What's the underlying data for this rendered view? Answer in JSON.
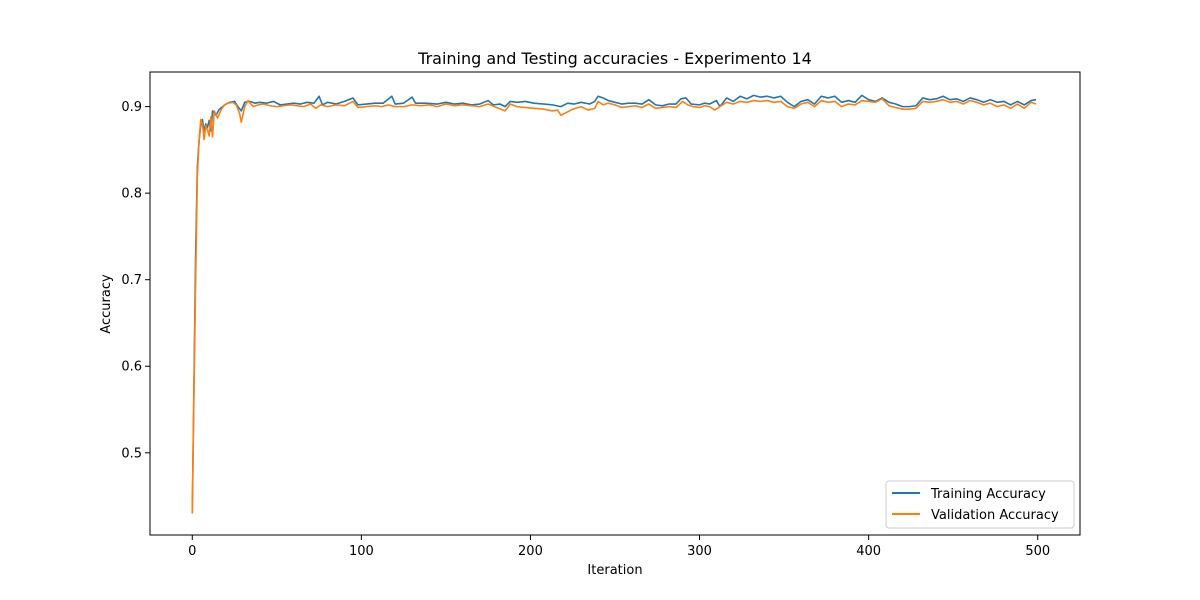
{
  "chart_data": {
    "type": "line",
    "title": "Training and Testing accuracies - Experimento 14",
    "xlabel": "Iteration",
    "ylabel": "Accuracy",
    "xlim": [
      -25,
      525
    ],
    "ylim": [
      0.405,
      0.94
    ],
    "x_ticks": [
      0,
      100,
      200,
      300,
      400,
      500
    ],
    "y_ticks": [
      0.5,
      0.6,
      0.7,
      0.8,
      0.9
    ],
    "y_tick_labels": [
      "0.5",
      "0.6",
      "0.7",
      "0.8",
      "0.9"
    ],
    "legend_position": "lower-right",
    "series": [
      {
        "name": "Training Accuracy",
        "color": "#1f77b4",
        "points": [
          [
            0,
            0.43
          ],
          [
            1,
            0.58
          ],
          [
            2,
            0.73
          ],
          [
            3,
            0.83
          ],
          [
            4,
            0.86
          ],
          [
            5,
            0.878
          ],
          [
            6,
            0.885
          ],
          [
            7,
            0.872
          ],
          [
            8,
            0.88
          ],
          [
            9,
            0.876
          ],
          [
            10,
            0.884
          ],
          [
            11,
            0.872
          ],
          [
            12,
            0.895
          ],
          [
            14,
            0.89
          ],
          [
            16,
            0.897
          ],
          [
            18,
            0.9
          ],
          [
            20,
            0.903
          ],
          [
            22,
            0.905
          ],
          [
            25,
            0.906
          ],
          [
            27,
            0.9
          ],
          [
            29,
            0.895
          ],
          [
            31,
            0.905
          ],
          [
            34,
            0.906
          ],
          [
            37,
            0.904
          ],
          [
            40,
            0.905
          ],
          [
            44,
            0.904
          ],
          [
            48,
            0.906
          ],
          [
            52,
            0.902
          ],
          [
            56,
            0.903
          ],
          [
            60,
            0.904
          ],
          [
            64,
            0.903
          ],
          [
            68,
            0.905
          ],
          [
            72,
            0.904
          ],
          [
            75,
            0.912
          ],
          [
            77,
            0.902
          ],
          [
            80,
            0.905
          ],
          [
            85,
            0.903
          ],
          [
            90,
            0.906
          ],
          [
            95,
            0.91
          ],
          [
            98,
            0.902
          ],
          [
            103,
            0.903
          ],
          [
            108,
            0.904
          ],
          [
            113,
            0.904
          ],
          [
            118,
            0.912
          ],
          [
            120,
            0.903
          ],
          [
            125,
            0.904
          ],
          [
            130,
            0.911
          ],
          [
            132,
            0.904
          ],
          [
            138,
            0.904
          ],
          [
            145,
            0.903
          ],
          [
            150,
            0.905
          ],
          [
            155,
            0.903
          ],
          [
            160,
            0.904
          ],
          [
            165,
            0.902
          ],
          [
            170,
            0.903
          ],
          [
            175,
            0.907
          ],
          [
            178,
            0.902
          ],
          [
            182,
            0.903
          ],
          [
            185,
            0.9
          ],
          [
            188,
            0.906
          ],
          [
            192,
            0.905
          ],
          [
            197,
            0.906
          ],
          [
            202,
            0.904
          ],
          [
            208,
            0.903
          ],
          [
            213,
            0.902
          ],
          [
            218,
            0.9
          ],
          [
            222,
            0.904
          ],
          [
            226,
            0.903
          ],
          [
            230,
            0.905
          ],
          [
            235,
            0.903
          ],
          [
            238,
            0.906
          ],
          [
            240,
            0.912
          ],
          [
            243,
            0.91
          ],
          [
            246,
            0.907
          ],
          [
            250,
            0.905
          ],
          [
            254,
            0.903
          ],
          [
            258,
            0.904
          ],
          [
            262,
            0.904
          ],
          [
            266,
            0.903
          ],
          [
            270,
            0.908
          ],
          [
            274,
            0.902
          ],
          [
            278,
            0.901
          ],
          [
            282,
            0.903
          ],
          [
            286,
            0.903
          ],
          [
            289,
            0.909
          ],
          [
            292,
            0.91
          ],
          [
            295,
            0.903
          ],
          [
            300,
            0.902
          ],
          [
            303,
            0.904
          ],
          [
            306,
            0.903
          ],
          [
            310,
            0.907
          ],
          [
            312,
            0.9
          ],
          [
            316,
            0.91
          ],
          [
            320,
            0.906
          ],
          [
            324,
            0.912
          ],
          [
            328,
            0.909
          ],
          [
            332,
            0.913
          ],
          [
            336,
            0.911
          ],
          [
            340,
            0.912
          ],
          [
            344,
            0.91
          ],
          [
            348,
            0.912
          ],
          [
            352,
            0.905
          ],
          [
            356,
            0.9
          ],
          [
            360,
            0.906
          ],
          [
            364,
            0.908
          ],
          [
            368,
            0.903
          ],
          [
            372,
            0.912
          ],
          [
            376,
            0.91
          ],
          [
            380,
            0.912
          ],
          [
            384,
            0.905
          ],
          [
            388,
            0.907
          ],
          [
            392,
            0.905
          ],
          [
            396,
            0.913
          ],
          [
            400,
            0.908
          ],
          [
            404,
            0.906
          ],
          [
            408,
            0.91
          ],
          [
            412,
            0.905
          ],
          [
            416,
            0.903
          ],
          [
            420,
            0.9
          ],
          [
            424,
            0.9
          ],
          [
            428,
            0.901
          ],
          [
            432,
            0.91
          ],
          [
            436,
            0.908
          ],
          [
            440,
            0.909
          ],
          [
            444,
            0.912
          ],
          [
            448,
            0.908
          ],
          [
            452,
            0.909
          ],
          [
            456,
            0.906
          ],
          [
            460,
            0.91
          ],
          [
            464,
            0.908
          ],
          [
            468,
            0.905
          ],
          [
            472,
            0.908
          ],
          [
            476,
            0.905
          ],
          [
            480,
            0.906
          ],
          [
            484,
            0.902
          ],
          [
            488,
            0.906
          ],
          [
            492,
            0.902
          ],
          [
            496,
            0.907
          ],
          [
            499,
            0.908
          ]
        ]
      },
      {
        "name": "Validation Accuracy",
        "color": "#ff7f0e",
        "points": [
          [
            0,
            0.43
          ],
          [
            1,
            0.57
          ],
          [
            2,
            0.7
          ],
          [
            3,
            0.82
          ],
          [
            4,
            0.86
          ],
          [
            5,
            0.885
          ],
          [
            6,
            0.88
          ],
          [
            7,
            0.862
          ],
          [
            8,
            0.878
          ],
          [
            9,
            0.873
          ],
          [
            10,
            0.866
          ],
          [
            11,
            0.888
          ],
          [
            12,
            0.865
          ],
          [
            13,
            0.895
          ],
          [
            15,
            0.887
          ],
          [
            17,
            0.896
          ],
          [
            19,
            0.902
          ],
          [
            21,
            0.904
          ],
          [
            24,
            0.905
          ],
          [
            26,
            0.902
          ],
          [
            28,
            0.892
          ],
          [
            29,
            0.882
          ],
          [
            31,
            0.9
          ],
          [
            33,
            0.907
          ],
          [
            36,
            0.9
          ],
          [
            39,
            0.902
          ],
          [
            42,
            0.903
          ],
          [
            46,
            0.901
          ],
          [
            50,
            0.9
          ],
          [
            54,
            0.901
          ],
          [
            58,
            0.902
          ],
          [
            62,
            0.901
          ],
          [
            66,
            0.9
          ],
          [
            70,
            0.903
          ],
          [
            73,
            0.898
          ],
          [
            76,
            0.902
          ],
          [
            80,
            0.9
          ],
          [
            85,
            0.902
          ],
          [
            90,
            0.901
          ],
          [
            95,
            0.906
          ],
          [
            98,
            0.899
          ],
          [
            103,
            0.9
          ],
          [
            108,
            0.901
          ],
          [
            112,
            0.9
          ],
          [
            116,
            0.902
          ],
          [
            120,
            0.9
          ],
          [
            125,
            0.9
          ],
          [
            130,
            0.902
          ],
          [
            135,
            0.901
          ],
          [
            140,
            0.902
          ],
          [
            145,
            0.9
          ],
          [
            150,
            0.903
          ],
          [
            155,
            0.901
          ],
          [
            160,
            0.902
          ],
          [
            165,
            0.901
          ],
          [
            170,
            0.9
          ],
          [
            175,
            0.903
          ],
          [
            180,
            0.899
          ],
          [
            185,
            0.895
          ],
          [
            188,
            0.903
          ],
          [
            192,
            0.9
          ],
          [
            197,
            0.899
          ],
          [
            202,
            0.898
          ],
          [
            208,
            0.897
          ],
          [
            213,
            0.895
          ],
          [
            216,
            0.896
          ],
          [
            218,
            0.89
          ],
          [
            221,
            0.893
          ],
          [
            225,
            0.897
          ],
          [
            230,
            0.9
          ],
          [
            234,
            0.896
          ],
          [
            238,
            0.898
          ],
          [
            240,
            0.906
          ],
          [
            243,
            0.902
          ],
          [
            246,
            0.904
          ],
          [
            250,
            0.902
          ],
          [
            254,
            0.899
          ],
          [
            258,
            0.9
          ],
          [
            262,
            0.901
          ],
          [
            266,
            0.899
          ],
          [
            270,
            0.903
          ],
          [
            274,
            0.898
          ],
          [
            278,
            0.899
          ],
          [
            282,
            0.9
          ],
          [
            286,
            0.899
          ],
          [
            290,
            0.906
          ],
          [
            293,
            0.902
          ],
          [
            296,
            0.9
          ],
          [
            300,
            0.899
          ],
          [
            303,
            0.901
          ],
          [
            306,
            0.9
          ],
          [
            309,
            0.896
          ],
          [
            312,
            0.9
          ],
          [
            316,
            0.905
          ],
          [
            320,
            0.903
          ],
          [
            324,
            0.906
          ],
          [
            328,
            0.905
          ],
          [
            332,
            0.907
          ],
          [
            336,
            0.906
          ],
          [
            340,
            0.907
          ],
          [
            344,
            0.905
          ],
          [
            348,
            0.906
          ],
          [
            352,
            0.9
          ],
          [
            356,
            0.898
          ],
          [
            360,
            0.903
          ],
          [
            364,
            0.905
          ],
          [
            368,
            0.9
          ],
          [
            372,
            0.907
          ],
          [
            376,
            0.905
          ],
          [
            380,
            0.906
          ],
          [
            384,
            0.9
          ],
          [
            388,
            0.903
          ],
          [
            392,
            0.902
          ],
          [
            396,
            0.907
          ],
          [
            400,
            0.906
          ],
          [
            404,
            0.905
          ],
          [
            408,
            0.909
          ],
          [
            412,
            0.901
          ],
          [
            416,
            0.899
          ],
          [
            420,
            0.897
          ],
          [
            424,
            0.897
          ],
          [
            428,
            0.898
          ],
          [
            432,
            0.906
          ],
          [
            436,
            0.905
          ],
          [
            440,
            0.906
          ],
          [
            444,
            0.908
          ],
          [
            448,
            0.905
          ],
          [
            452,
            0.906
          ],
          [
            456,
            0.903
          ],
          [
            460,
            0.907
          ],
          [
            464,
            0.905
          ],
          [
            468,
            0.902
          ],
          [
            472,
            0.904
          ],
          [
            476,
            0.9
          ],
          [
            480,
            0.902
          ],
          [
            484,
            0.898
          ],
          [
            488,
            0.903
          ],
          [
            492,
            0.898
          ],
          [
            496,
            0.905
          ],
          [
            499,
            0.903
          ]
        ]
      }
    ]
  }
}
